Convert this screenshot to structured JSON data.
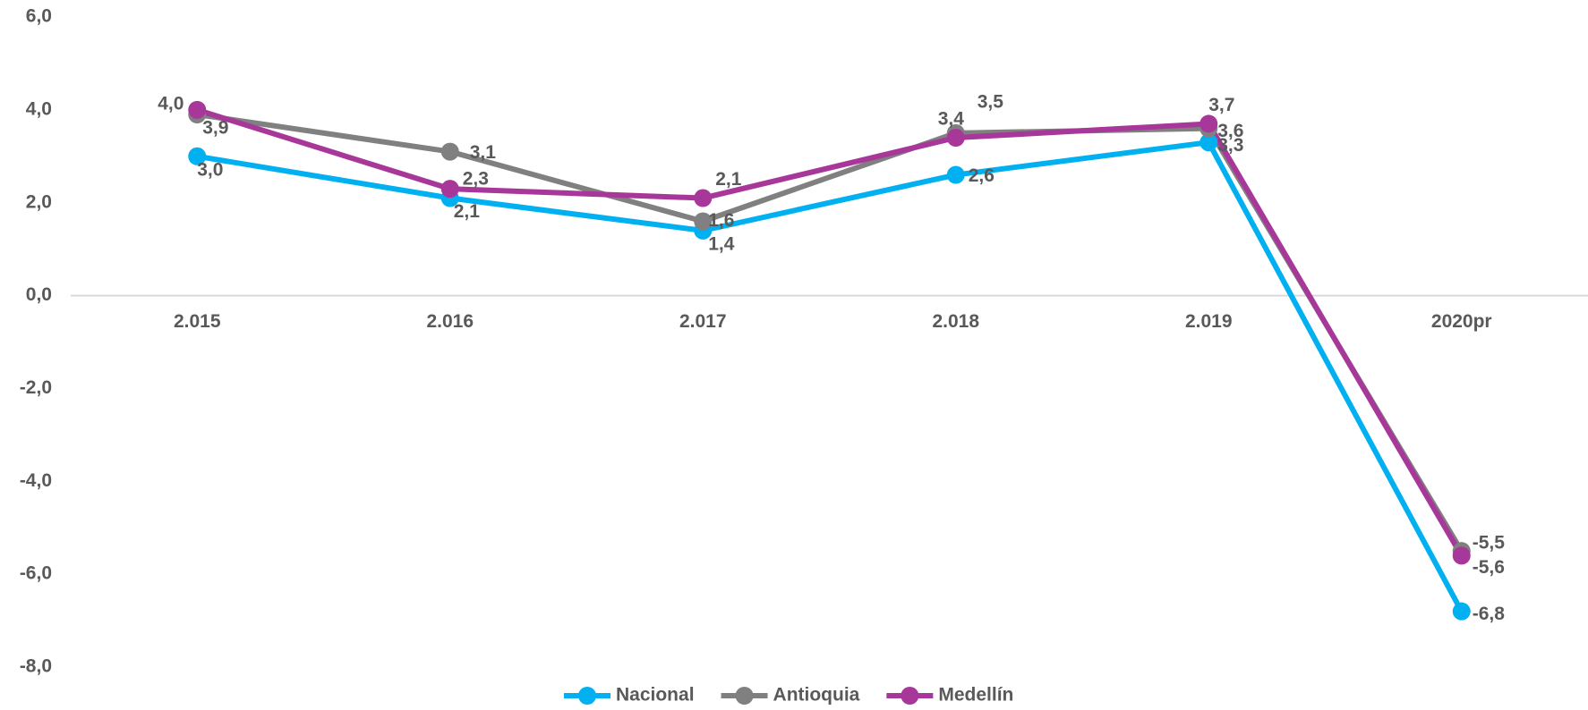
{
  "chart_data": {
    "type": "line",
    "categories": [
      "2.015",
      "2.016",
      "2.017",
      "2.018",
      "2.019",
      "2020pr"
    ],
    "series": [
      {
        "name": "Nacional",
        "color": "#00b0f0",
        "values": [
          3.0,
          2.1,
          1.4,
          2.6,
          3.3,
          -6.8
        ],
        "value_labels": [
          "3,0",
          "2,1",
          "1,4",
          "2,6",
          "3,3",
          "-6,8"
        ]
      },
      {
        "name": "Antioquia",
        "color": "#808080",
        "values": [
          3.9,
          3.1,
          1.6,
          3.5,
          3.6,
          -5.5
        ],
        "value_labels": [
          "3,9",
          "3,1",
          "1,6",
          "3,5",
          "3,6",
          "-5,5"
        ]
      },
      {
        "name": "Medellín",
        "color": "#a8379a",
        "values": [
          4.0,
          2.3,
          2.1,
          3.4,
          3.7,
          -5.6
        ],
        "value_labels": [
          "4,0",
          "2,3",
          "2,1",
          "3,4",
          "3,7",
          "-5,6"
        ]
      }
    ],
    "ylim": [
      -8,
      6
    ],
    "yticks": [
      {
        "value": 6,
        "label": "6,0"
      },
      {
        "value": 4,
        "label": "4,0"
      },
      {
        "value": 2,
        "label": "2,0"
      },
      {
        "value": 0,
        "label": "0,0"
      },
      {
        "value": -2,
        "label": "-2,0"
      },
      {
        "value": -4,
        "label": "-4,0"
      },
      {
        "value": -6,
        "label": "-6,0"
      },
      {
        "value": -8,
        "label": "-8,0"
      }
    ],
    "legend": "bottom"
  }
}
